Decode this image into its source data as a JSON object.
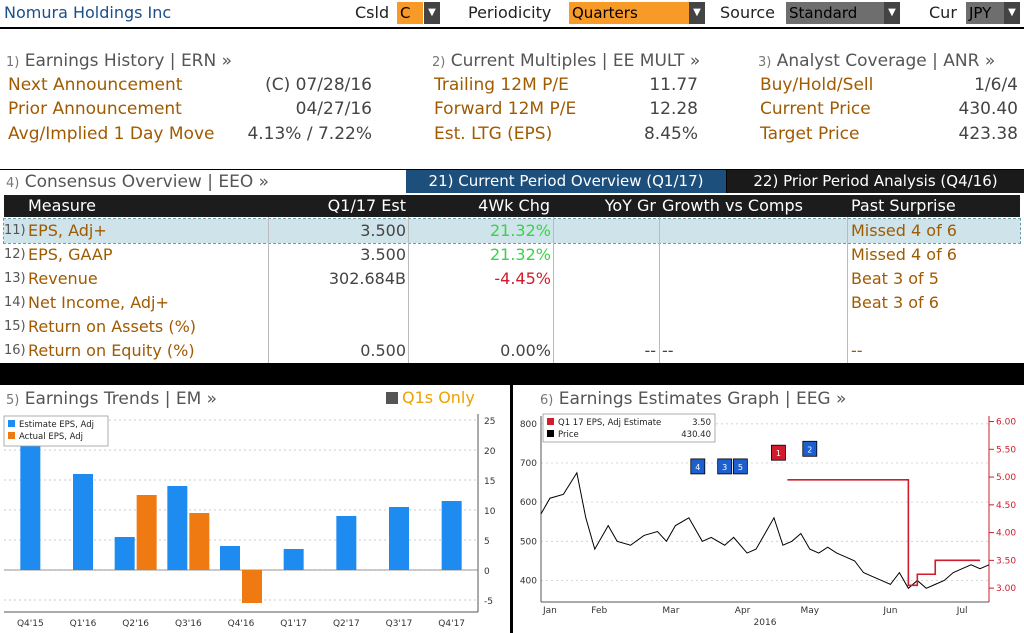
{
  "header": {
    "title": "Nomura Holdings Inc",
    "csld_label": "Csld",
    "csld_value": "C",
    "periodicity_label": "Periodicity",
    "periodicity_value": "Quarters",
    "source_label": "Source",
    "source_value": "Standard",
    "cur_label": "Cur",
    "cur_value": "JPY"
  },
  "earnings_history": {
    "num": "1)",
    "title": "Earnings History | ERN »",
    "rows": [
      {
        "label": "Next Announcement",
        "value": "(C)  07/28/16"
      },
      {
        "label": "Prior Announcement",
        "value": "04/27/16"
      },
      {
        "label": "Avg/Implied 1 Day Move",
        "value": "4.13% / 7.22%"
      }
    ]
  },
  "current_multiples": {
    "num": "2)",
    "title": "Current Multiples | EE MULT »",
    "rows": [
      {
        "label": "Trailing 12M P/E",
        "value": "11.77"
      },
      {
        "label": "Forward 12M P/E",
        "value": "12.28"
      },
      {
        "label": "Est. LTG (EPS)",
        "value": "8.45%"
      }
    ]
  },
  "analyst_coverage": {
    "num": "3)",
    "title": "Analyst Coverage | ANR »",
    "rows": [
      {
        "label": "Buy/Hold/Sell",
        "value": "1/6/4"
      },
      {
        "label": "Current Price",
        "value": "430.40"
      },
      {
        "label": "Target Price",
        "value": "423.38"
      }
    ]
  },
  "consensus": {
    "num": "4)",
    "title": "Consensus Overview | EEO »",
    "tab_current": "21) Current Period Overview (Q1/17)",
    "tab_prior": "22) Prior Period Analysis (Q4/16)",
    "columns": [
      "Measure",
      "Q1/17 Est",
      "4Wk Chg",
      "YoY Gr",
      "Growth vs Comps",
      "Past Surprise"
    ],
    "rows": [
      {
        "num": "11)",
        "measure": "EPS, Adj+",
        "est": "3.500",
        "chg": "21.32%",
        "yoy": "",
        "comps": "",
        "surprise": "Missed 4 of 6"
      },
      {
        "num": "12)",
        "measure": "EPS, GAAP",
        "est": "3.500",
        "chg": "21.32%",
        "yoy": "",
        "comps": "",
        "surprise": "Missed 4 of 6"
      },
      {
        "num": "13)",
        "measure": "Revenue",
        "est": "302.684B",
        "chg": "-4.45%",
        "yoy": "",
        "comps": "",
        "surprise": "Beat 3 of 5"
      },
      {
        "num": "14)",
        "measure": "Net Income, Adj+",
        "est": "",
        "chg": "",
        "yoy": "",
        "comps": "",
        "surprise": "Beat 3 of 6"
      },
      {
        "num": "15)",
        "measure": "Return on Assets (%)",
        "est": "",
        "chg": "",
        "yoy": "",
        "comps": "",
        "surprise": ""
      },
      {
        "num": "16)",
        "measure": "Return on Equity (%)",
        "est": "0.500",
        "chg": "0.00%",
        "yoy": "--",
        "comps": "--",
        "surprise": "--"
      }
    ],
    "colors": {
      "positive": "#3bd24a",
      "negative": "#d01c2c"
    }
  },
  "earnings_trends": {
    "num": "5)",
    "title": "Earnings Trends | EM »",
    "toggle_label": "Q1s Only"
  },
  "earnings_graph": {
    "num": "6)",
    "title": "Earnings Estimates Graph | EEG »"
  },
  "chart_data": [
    {
      "type": "bar",
      "categories": [
        "Q4'15",
        "Q1'16",
        "Q2'16",
        "Q3'16",
        "Q4'16",
        "Q1'17",
        "Q2'17",
        "Q3'17",
        "Q4'17"
      ],
      "series": [
        {
          "name": "Estimate EPS, Adj",
          "color": "#1e8bf0",
          "values": [
            21.5,
            16,
            5.5,
            14,
            4,
            3.5,
            9,
            10.5,
            11.5
          ]
        },
        {
          "name": "Actual EPS, Adj",
          "color": "#f07a12",
          "values": [
            null,
            null,
            12.5,
            9.5,
            -5.5,
            null,
            null,
            null,
            null
          ]
        }
      ],
      "ylim": [
        -7,
        26
      ],
      "yticks": [
        -5,
        0,
        5,
        10,
        15,
        20,
        25
      ],
      "legend": "top-left"
    },
    {
      "type": "line",
      "x_ticks": [
        "Jan",
        "Feb",
        "Mar",
        "Apr",
        "May",
        "Jun",
        "Jul"
      ],
      "x_year": "2016",
      "left_axis": {
        "ticks": [
          400,
          500,
          600,
          700,
          800
        ]
      },
      "right_axis": {
        "ticks": [
          "3.00",
          "3.50",
          "4.00",
          "4.50",
          "5.00",
          "5.50",
          "6.00"
        ],
        "color": "#d01c2c"
      },
      "legend": [
        {
          "label": "Q1 17 EPS, Adj Estimate",
          "value": "3.50",
          "color": "#d01c2c"
        },
        {
          "label": "Price",
          "value": "430.40",
          "color": "#000000"
        }
      ],
      "series": [
        {
          "name": "Price",
          "color": "#000000",
          "x": [
            0,
            0.02,
            0.05,
            0.08,
            0.1,
            0.12,
            0.15,
            0.17,
            0.2,
            0.23,
            0.26,
            0.28,
            0.3,
            0.33,
            0.36,
            0.38,
            0.41,
            0.43,
            0.46,
            0.48,
            0.5,
            0.52,
            0.54,
            0.56,
            0.58,
            0.6,
            0.62,
            0.64,
            0.66,
            0.68,
            0.7,
            0.72,
            0.74,
            0.76,
            0.78,
            0.8,
            0.82,
            0.84,
            0.86,
            0.88,
            0.9,
            0.92,
            0.94,
            0.96,
            0.98,
            1.0
          ],
          "values": [
            570,
            610,
            620,
            675,
            560,
            480,
            540,
            500,
            490,
            515,
            525,
            500,
            540,
            560,
            500,
            510,
            490,
            510,
            470,
            480,
            520,
            560,
            490,
            500,
            520,
            480,
            470,
            485,
            470,
            460,
            450,
            420,
            410,
            400,
            390,
            420,
            380,
            400,
            380,
            390,
            400,
            420,
            430,
            440,
            430,
            440
          ]
        },
        {
          "name": "Q1 17 EPS, Adj Estimate",
          "color": "#d01c2c",
          "x": [
            0.55,
            0.82,
            0.82,
            0.84,
            0.84,
            0.88,
            0.88,
            0.98
          ],
          "values": [
            4.95,
            4.95,
            3.05,
            3.05,
            3.25,
            3.25,
            3.5,
            3.5
          ]
        }
      ],
      "markers": [
        {
          "label": "4",
          "color": "#1e5fd0"
        },
        {
          "label": "3",
          "color": "#1e5fd0"
        },
        {
          "label": "5",
          "color": "#1e5fd0"
        },
        {
          "label": "1",
          "color": "#d01c2c"
        },
        {
          "label": "2",
          "color": "#1e5fd0"
        }
      ]
    }
  ]
}
